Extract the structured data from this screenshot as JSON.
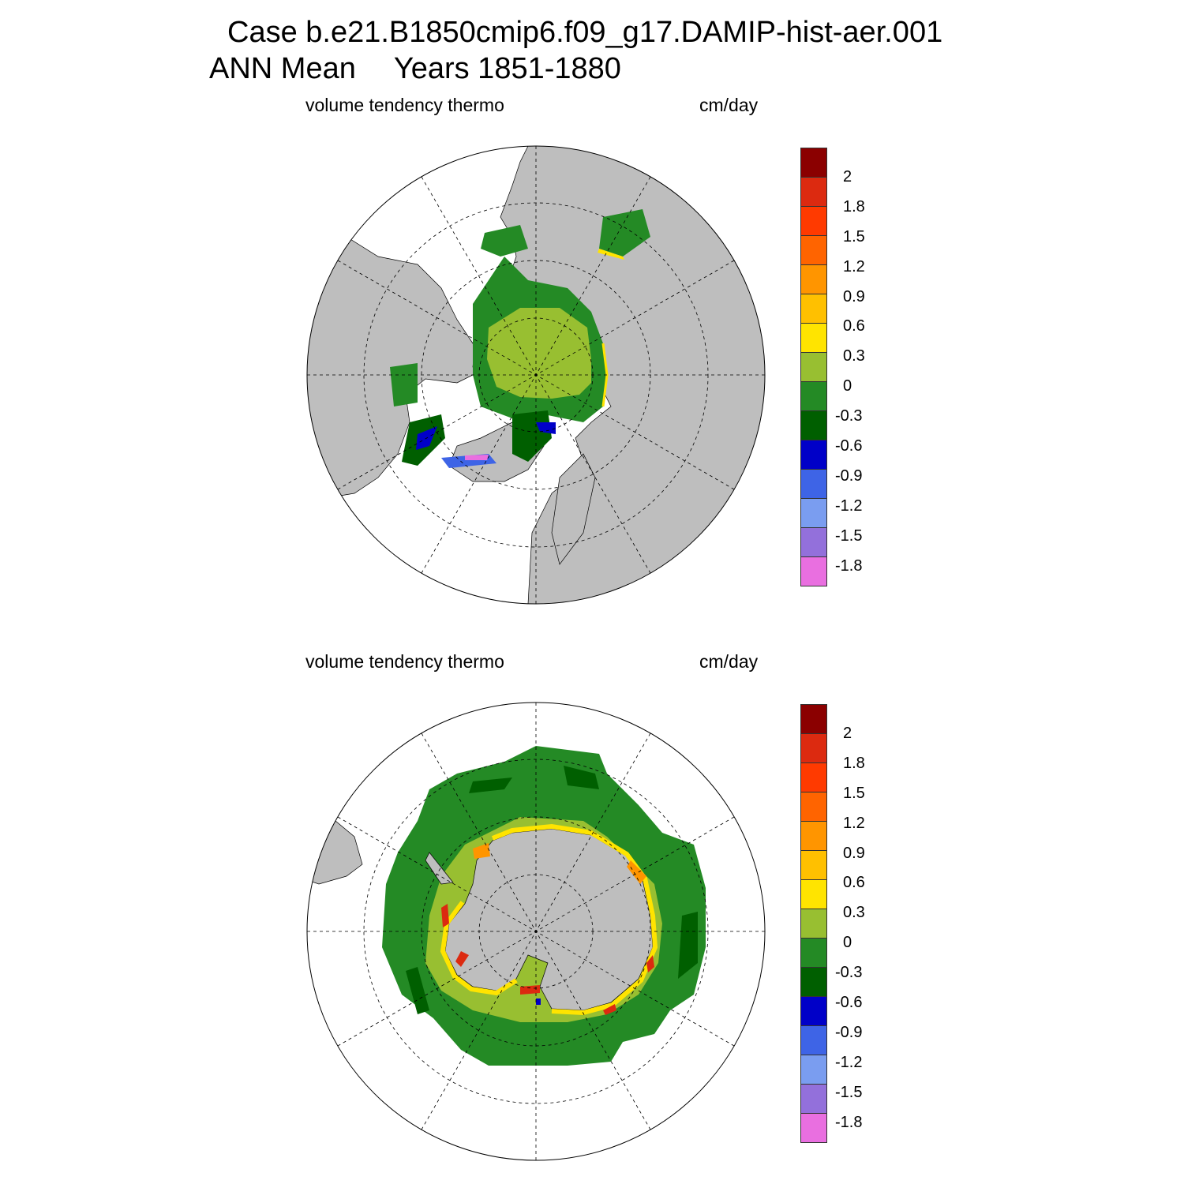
{
  "title": {
    "line1": "Case b.e21.B1850cmip6.f09_g17.DAMIP-hist-aer.001",
    "line2_left": "ANN Mean",
    "line2_right": "Years 1851-1880"
  },
  "panels": [
    {
      "id": "north",
      "variable": "volume tendency thermo",
      "units": "cm/day",
      "hemisphere": "Arctic"
    },
    {
      "id": "south",
      "variable": "volume tendency thermo",
      "units": "cm/day",
      "hemisphere": "Antarctic"
    }
  ],
  "colorbar": {
    "colors": [
      "#8b0000",
      "#dc2a10",
      "#ff3a00",
      "#ff6400",
      "#ff9500",
      "#ffc000",
      "#ffe400",
      "#98bf31",
      "#248a25",
      "#005f00",
      "#0000c8",
      "#3e64e6",
      "#7a9df0",
      "#9370db",
      "#e96fe0"
    ],
    "labels": [
      "2",
      "1.8",
      "1.5",
      "1.2",
      "0.9",
      "0.6",
      "0.3",
      "0",
      "-0.3",
      "-0.6",
      "-0.9",
      "-1.2",
      "-1.5",
      "-1.8"
    ]
  },
  "map_colors": {
    "land": "#bebebe",
    "ocean": "#ffffff",
    "light_green": "#98bf31",
    "green": "#248a25",
    "dark_green": "#005f00",
    "yellow": "#ffe400",
    "orange": "#ff9500",
    "red": "#dc2a10",
    "blue": "#0000c8"
  }
}
